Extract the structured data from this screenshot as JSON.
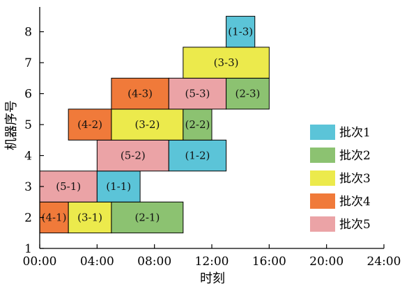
{
  "chart_data": {
    "type": "gantt",
    "title": "",
    "xlabel": "时刻",
    "ylabel": "机器序号",
    "xlim": [
      0,
      24
    ],
    "ylim": [
      1,
      8.8
    ],
    "x_ticks": [
      {
        "value": 0,
        "label": "00:00"
      },
      {
        "value": 4,
        "label": "04:00"
      },
      {
        "value": 8,
        "label": "08:00"
      },
      {
        "value": 12,
        "label": "12:00"
      },
      {
        "value": 16,
        "label": "16:00"
      },
      {
        "value": 20,
        "label": "20:00"
      },
      {
        "value": 24,
        "label": "24:00"
      }
    ],
    "y_ticks": [
      {
        "value": 1,
        "label": "1"
      },
      {
        "value": 2,
        "label": "2"
      },
      {
        "value": 3,
        "label": "3"
      },
      {
        "value": 4,
        "label": "4"
      },
      {
        "value": 5,
        "label": "5"
      },
      {
        "value": 6,
        "label": "6"
      },
      {
        "value": 7,
        "label": "7"
      },
      {
        "value": 8,
        "label": "8"
      }
    ],
    "grid": false,
    "legend_position": "bottom-right",
    "series": [
      {
        "name": "批次1",
        "color": "#5bc4d8"
      },
      {
        "name": "批次2",
        "color": "#8cc271"
      },
      {
        "name": "批次3",
        "color": "#ecea4c"
      },
      {
        "name": "批次4",
        "color": "#f07a3a"
      },
      {
        "name": "批次5",
        "color": "#eba3a6"
      }
    ],
    "tasks": [
      {
        "label": "(4-1)",
        "machine": 2,
        "start": 0,
        "end": 2,
        "batch": 4
      },
      {
        "label": "(3-1)",
        "machine": 2,
        "start": 2,
        "end": 5,
        "batch": 3
      },
      {
        "label": "(2-1)",
        "machine": 2,
        "start": 5,
        "end": 10,
        "batch": 2
      },
      {
        "label": "(5-1)",
        "machine": 3,
        "start": 0,
        "end": 4,
        "batch": 5
      },
      {
        "label": "(1-1)",
        "machine": 3,
        "start": 4,
        "end": 7,
        "batch": 1
      },
      {
        "label": "(5-2)",
        "machine": 4,
        "start": 4,
        "end": 9,
        "batch": 5
      },
      {
        "label": "(1-2)",
        "machine": 4,
        "start": 9,
        "end": 13,
        "batch": 1
      },
      {
        "label": "(4-2)",
        "machine": 5,
        "start": 2,
        "end": 5,
        "batch": 4
      },
      {
        "label": "(3-2)",
        "machine": 5,
        "start": 5,
        "end": 10,
        "batch": 3
      },
      {
        "label": "(2-2)",
        "machine": 5,
        "start": 10,
        "end": 12,
        "batch": 2
      },
      {
        "label": "(4-3)",
        "machine": 6,
        "start": 5,
        "end": 9,
        "batch": 4
      },
      {
        "label": "(5-3)",
        "machine": 6,
        "start": 9,
        "end": 13,
        "batch": 5
      },
      {
        "label": "(2-3)",
        "machine": 6,
        "start": 13,
        "end": 16,
        "batch": 2
      },
      {
        "label": "(3-3)",
        "machine": 7,
        "start": 10,
        "end": 16,
        "batch": 3
      },
      {
        "label": "(1-3)",
        "machine": 8,
        "start": 13,
        "end": 15,
        "batch": 1
      }
    ]
  }
}
